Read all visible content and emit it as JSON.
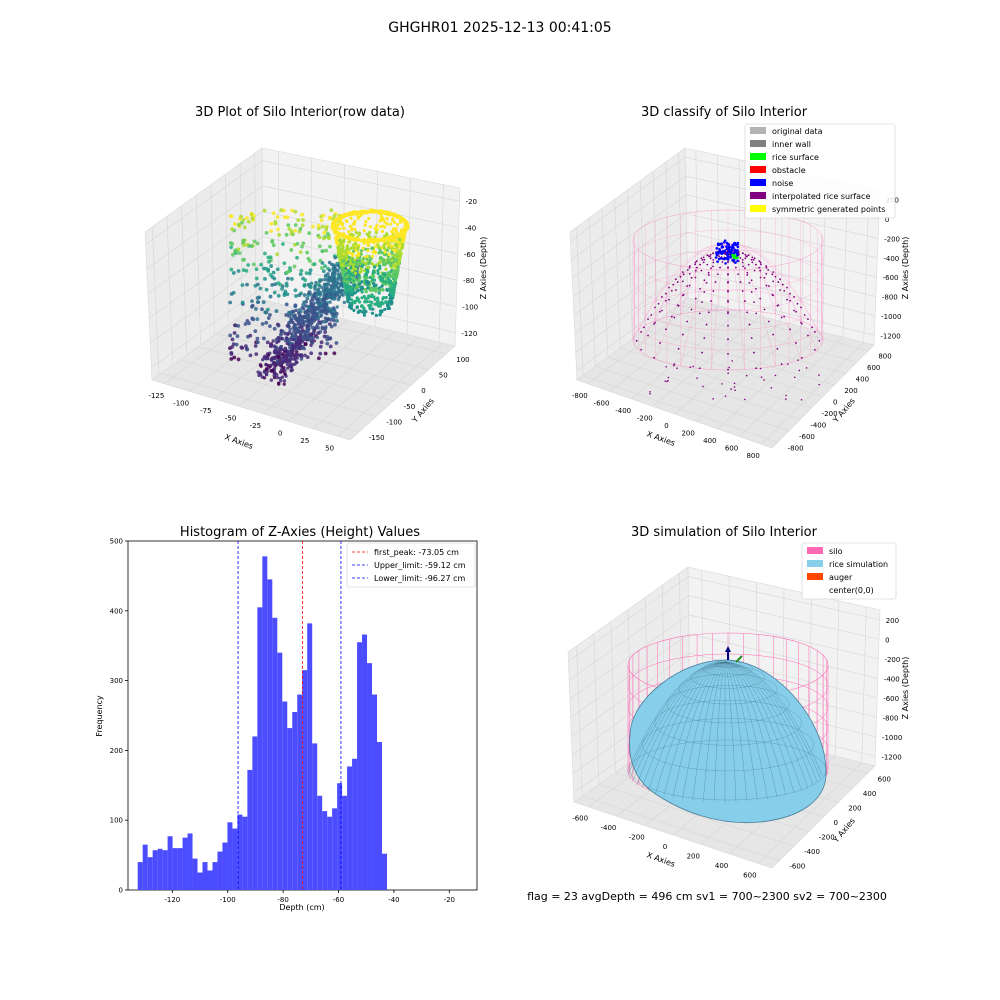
{
  "figure": {
    "title": "GHGHR01 2025-12-13 00:41:05",
    "footer": "flag = 23   avgDepth = 496 cm  sv1 = 700~2300  sv2 = 700~2300"
  },
  "panels": {
    "raw": {
      "title": "3D Plot of Silo Interior(row data)",
      "xlabel": "X Axies",
      "ylabel": "Y Axies",
      "zlabel": "Z Axies (Depth)",
      "xticks": [
        "-125",
        "-100",
        "-75",
        "-50",
        "-25",
        "0",
        "25",
        "50"
      ],
      "yticks": [
        "100",
        "50",
        "0",
        "-50",
        "-100",
        "-150"
      ],
      "zticks": [
        "-20",
        "-40",
        "-60",
        "-80",
        "-100",
        "-120"
      ]
    },
    "classify": {
      "title": "3D classify of Silo Interior",
      "xlabel": "X Axies",
      "ylabel": "Y Axies",
      "zlabel": "Z Axies (Depth)",
      "xticks": [
        "-800",
        "-600",
        "-400",
        "-200",
        "0",
        "200",
        "400",
        "600",
        "800"
      ],
      "yticks": [
        "800",
        "600",
        "400",
        "200",
        "0",
        "-200",
        "-400",
        "-600",
        "-800"
      ],
      "zticks": [
        "200",
        "0",
        "-200",
        "-400",
        "-600",
        "-800",
        "-1000",
        "-1200"
      ],
      "legend": [
        {
          "label": "original data",
          "color": "#b3b3b3"
        },
        {
          "label": "inner wall",
          "color": "#808080"
        },
        {
          "label": "rice surface",
          "color": "#00ff00"
        },
        {
          "label": "obstacle",
          "color": "#ff0000"
        },
        {
          "label": "noise",
          "color": "#0000ff"
        },
        {
          "label": "interpolated rice surface",
          "color": "#800080"
        },
        {
          "label": "symmetric generated points",
          "color": "#ffff00"
        }
      ]
    },
    "simulation": {
      "title": "3D simulation of Silo Interior",
      "xlabel": "X Axies",
      "ylabel": "Y Axies",
      "zlabel": "Z Axies (Depth)",
      "xticks": [
        "-600",
        "-400",
        "-200",
        "0",
        "200",
        "400",
        "600"
      ],
      "yticks": [
        "600",
        "400",
        "200",
        "0",
        "-200",
        "-400",
        "-600"
      ],
      "zticks": [
        "200",
        "0",
        "-200",
        "-400",
        "-600",
        "-800",
        "-1000",
        "-1200"
      ],
      "legend": [
        {
          "label": "silo",
          "color": "#ff69b4"
        },
        {
          "label": "rice simulation",
          "color": "#87ceeb"
        },
        {
          "label": "auger",
          "color": "#ff4500"
        },
        {
          "label": "center(0,0)",
          "color": ""
        }
      ]
    }
  },
  "chart_data": {
    "type": "bar",
    "title": "Histogram of Z-Axies (Height) Values",
    "xlabel": "Depth (cm)",
    "ylabel": "Frequency",
    "xlim": [
      -136,
      -10
    ],
    "ylim": [
      0,
      500
    ],
    "xticks": [
      -120,
      -100,
      -80,
      -60,
      -40,
      -20
    ],
    "yticks": [
      0,
      100,
      200,
      300,
      400,
      500
    ],
    "bar_color": "#4c4cff",
    "bin_start": -132.5,
    "bin_width": 1.8,
    "values": [
      40,
      65,
      47,
      57,
      59,
      57,
      77,
      60,
      60,
      75,
      81,
      45,
      25,
      40,
      28,
      40,
      55,
      68,
      97,
      88,
      108,
      105,
      172,
      220,
      405,
      478,
      445,
      390,
      340,
      270,
      232,
      255,
      280,
      315,
      382,
      210,
      135,
      113,
      105,
      117,
      153,
      135,
      177,
      188,
      355,
      366,
      325,
      280,
      212,
      52
    ],
    "vlines": [
      {
        "label": "first_peak: -73.05 cm",
        "x": -73.05,
        "color": "#ff0000"
      },
      {
        "label": "Upper_limit: -59.12 cm",
        "x": -59.12,
        "color": "#0000ff"
      },
      {
        "label": "Lower_limit: -96.27 cm",
        "x": -96.27,
        "color": "#0000ff"
      }
    ]
  }
}
